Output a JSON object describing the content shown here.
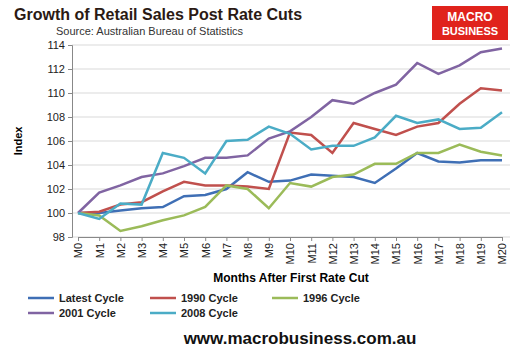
{
  "chart_data": {
    "type": "line",
    "title": "Growth of Retail Sales Post Rate Cuts",
    "subtitle": "Source: Australian Bureau of Statistics",
    "x_label": "Months After First Rate Cut",
    "y_label": "Index",
    "annotations": [
      "MACRO",
      "BUSINESS",
      "www.macrobusiness.com.au"
    ],
    "categories": [
      "M0",
      "M1",
      "M2",
      "M3",
      "M4",
      "M5",
      "M6",
      "M7",
      "M8",
      "M9",
      "M10",
      "M11",
      "M12",
      "M13",
      "M14",
      "M15",
      "M16",
      "M17",
      "M18",
      "M19",
      "M20"
    ],
    "series": [
      {
        "name": "Latest Cycle",
        "color": "#3f6fb5",
        "values": [
          100,
          100,
          100.2,
          100.4,
          100.5,
          101.4,
          101.5,
          102,
          103.4,
          102.6,
          102.7,
          103.2,
          103.1,
          103,
          102.5,
          103.7,
          105,
          104.3,
          104.2,
          104.4,
          104.4
        ]
      },
      {
        "name": "1990 Cycle",
        "color": "#c0504d",
        "values": [
          100,
          100.1,
          100.7,
          100.9,
          101.8,
          102.6,
          102.3,
          102.3,
          102.2,
          102,
          106.7,
          106.5,
          105,
          107.5,
          107,
          106.5,
          107.2,
          107.5,
          109.1,
          110.4,
          110.2
        ]
      },
      {
        "name": "1996 Cycle",
        "color": "#9bbb59",
        "values": [
          100,
          99.8,
          98.5,
          98.9,
          99.4,
          99.8,
          100.5,
          102.3,
          102,
          100.4,
          102.5,
          102.2,
          103,
          103.2,
          104.1,
          104.1,
          105,
          105,
          105.7,
          105.1,
          104.8
        ]
      },
      {
        "name": "2001 Cycle",
        "color": "#8064a2",
        "values": [
          100,
          101.7,
          102.3,
          103,
          103.3,
          103.9,
          104.6,
          104.6,
          104.8,
          106.2,
          106.8,
          108,
          109.4,
          109.1,
          110,
          110.7,
          112.5,
          111.6,
          112.3,
          113.4,
          113.7
        ]
      },
      {
        "name": "2008 Cycle",
        "color": "#4bacc6",
        "values": [
          100,
          99.5,
          100.8,
          100.7,
          105,
          104.6,
          103.3,
          106,
          106.1,
          107.2,
          106.6,
          105.3,
          105.6,
          105.6,
          106.3,
          108.1,
          107.5,
          107.8,
          107,
          107.1,
          108.4
        ]
      }
    ],
    "ylim": [
      98,
      114
    ],
    "yticks": [
      98,
      100,
      102,
      104,
      106,
      108,
      110,
      112,
      114
    ],
    "grid": true,
    "legend": "bottom"
  }
}
